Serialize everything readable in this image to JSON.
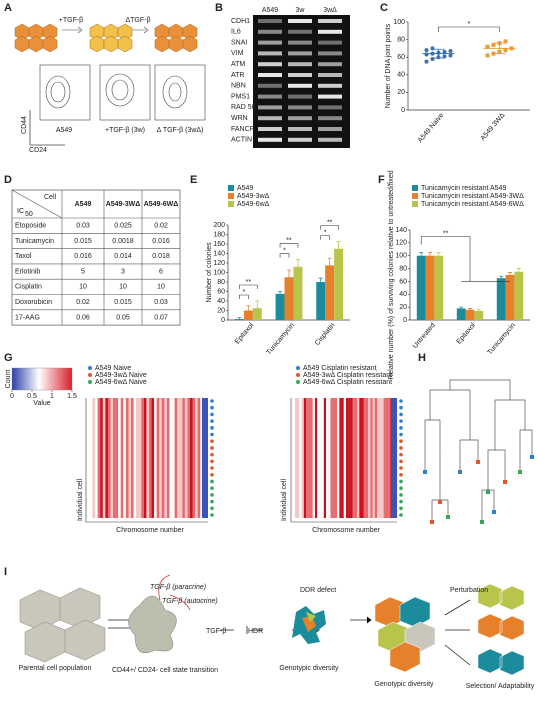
{
  "panel_letters": [
    "A",
    "B",
    "C",
    "D",
    "E",
    "F",
    "G",
    "H",
    "I"
  ],
  "panel_a": {
    "arrows": [
      "+TGF-β",
      "ΔTGF-β"
    ],
    "plots": [
      "A549",
      "+TGF-β (3w)",
      "Δ TGF-β (3wΔ)"
    ],
    "y_label": "CD44",
    "x_label": "CD24"
  },
  "panel_b": {
    "columns": [
      "A549",
      "3w",
      "3wΔ"
    ],
    "genes": [
      "CDH1",
      "IL6",
      "SNAI",
      "VIM",
      "ATM",
      "ATR",
      "NBN",
      "PMS1",
      "RAD 50",
      "WRN",
      "FANCF",
      "ACTIN"
    ]
  },
  "chart_data": [
    {
      "type": "dot",
      "y_label": "Number of DNA joint points",
      "categories": [
        "A549 Naive",
        "A549 3WΔ"
      ],
      "groups": [
        {
          "color": "#3a6fb0",
          "values": [
            55,
            58,
            60,
            61,
            62,
            63,
            64,
            65,
            66,
            67,
            68,
            70
          ]
        },
        {
          "color": "#e89a3c",
          "values": [
            62,
            64,
            66,
            68,
            70,
            72,
            74,
            76,
            78
          ]
        }
      ],
      "means": [
        64,
        70
      ],
      "sds": [
        5,
        6
      ],
      "significance": [
        "*"
      ],
      "ylim": [
        0,
        100
      ],
      "yticks": [
        0,
        20,
        40,
        60,
        80,
        100
      ]
    },
    {
      "type": "bar",
      "y_label": "Number of colonies",
      "categories": [
        "Epitaxol",
        "Tunicamycin",
        "Cisplatin"
      ],
      "series": [
        {
          "name": "A549",
          "color": "#1b8c9c",
          "values": [
            2,
            55,
            80
          ],
          "errors": [
            3,
            5,
            8
          ]
        },
        {
          "name": "A549-3wΔ",
          "color": "#e6802b",
          "values": [
            20,
            90,
            115
          ],
          "errors": [
            10,
            15,
            15
          ]
        },
        {
          "name": "A549-6wΔ",
          "color": "#b9c44b",
          "values": [
            25,
            112,
            150
          ],
          "errors": [
            15,
            15,
            15
          ]
        }
      ],
      "significance": [
        "**",
        "*",
        "**",
        "*",
        "**",
        "*"
      ],
      "ylim": [
        0,
        200
      ],
      "yticks": [
        0,
        20,
        40,
        60,
        80,
        100,
        120,
        140,
        160,
        180,
        200
      ]
    },
    {
      "type": "bar",
      "y_label": "Relative number (%) of surviving colonies relative to untreated/fixed",
      "categories": [
        "Untreated",
        "Epitaxol",
        "Tunicamycin"
      ],
      "series": [
        {
          "name": "Tunicamycin resistant A549",
          "color": "#1b8c9c",
          "values": [
            100,
            18,
            65
          ],
          "errors": [
            5,
            2,
            3
          ]
        },
        {
          "name": "Tunicamycin resistant A549-3WΔ",
          "color": "#e6802b",
          "values": [
            100,
            16,
            70
          ],
          "errors": [
            5,
            2,
            4
          ]
        },
        {
          "name": "Tunicamycin resistant A549-6WΔ",
          "color": "#b9c44b",
          "values": [
            100,
            14,
            75
          ],
          "errors": [
            5,
            2,
            5
          ]
        }
      ],
      "significance": [
        "**"
      ],
      "ylim": [
        0,
        140
      ],
      "yticks": [
        0,
        20,
        40,
        60,
        80,
        100,
        120,
        140
      ]
    }
  ],
  "table": {
    "corner_top": "Cell",
    "corner_bottom": "IC",
    "corner_sub": "50",
    "columns": [
      "A549",
      "A549-3WΔ",
      "A549-6WΔ"
    ],
    "column_colors": [
      "#1b8c9c",
      "#e6802b",
      "#b9a83b"
    ],
    "rows": [
      [
        "Etoposide",
        0.03,
        0.025,
        0.02
      ],
      [
        "Tunicamycin",
        0.015,
        0.0018,
        0.016
      ],
      [
        "Taxol",
        0.016,
        0.014,
        0.018
      ],
      [
        "Erlotinib",
        5,
        3,
        6
      ],
      [
        "Cisplatin",
        10,
        10,
        10
      ],
      [
        "Doxorubicin",
        0.02,
        0.015,
        0.03
      ],
      [
        "17-AAG",
        0.06,
        0.05,
        0.07
      ]
    ]
  },
  "panel_g": {
    "colorbar_title": "Count",
    "colorbar_label": "Value",
    "colorbar_ticks": [
      0,
      0.5,
      1,
      1.5
    ],
    "colorbar_lim": [
      0,
      1.5
    ],
    "legend_left": [
      "A549 Naive",
      "A549-3wΔ Naive",
      "A549-6wΔ Naive"
    ],
    "legend_right": [
      "A549 Cisplatin resistant",
      "A549-3wΔ Cisplatin resistant",
      "A549-6wΔ Cisplatin resistant"
    ],
    "legend_colors": [
      "#2f7fd0",
      "#e2572c",
      "#3aa55a"
    ],
    "y_label": "Individual cell",
    "x_label": "Chromosome number"
  },
  "panel_i": {
    "parental": "Parental cell population",
    "paracrine": "TGF-β (paracrine)",
    "autocrine": "TGF-β (autocrine)",
    "tgf": "TGF-β",
    "hdr": "HDR",
    "transition": "CD44+/ CD24- cell state transition",
    "ddr": "DDR defect",
    "diversity_1": "Genotypic diversity",
    "diversity_2": "Genotypic diversity",
    "perturbation": "Perturbation",
    "selection": "Selection/ Adaptability"
  }
}
